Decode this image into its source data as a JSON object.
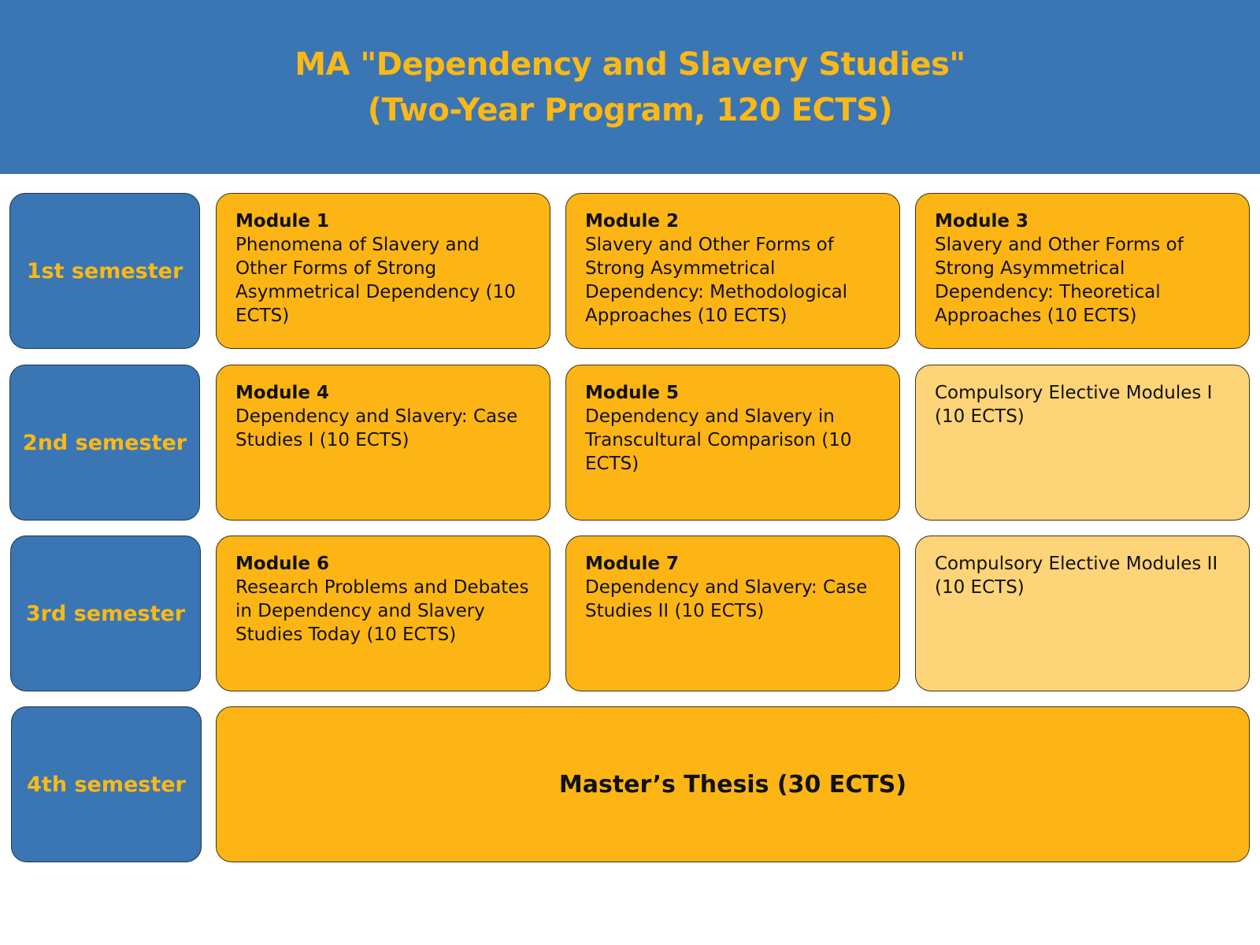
{
  "title": {
    "line1": "MA \"Dependency and Slavery Studies\"",
    "line2": "(Two-Year Program, 120 ECTS)"
  },
  "semesters": [
    "1st semester",
    "2nd semester",
    "3rd semester",
    "4th semester"
  ],
  "modules": [
    {
      "title": "Module 1",
      "text": "Phenomena of Slavery and Other Forms of Strong Asymmetrical Dependency (10 ECTS)"
    },
    {
      "title": "Module 2",
      "text": "Slavery and Other Forms of Strong Asymmetrical Dependency: Methodological Approaches (10 ECTS)"
    },
    {
      "title": "Module 3",
      "text": "Slavery and Other Forms of Strong Asymmetrical Dependency: Theoretical Approaches (10 ECTS)"
    },
    {
      "title": "Module 4",
      "text": "Dependency and Slavery: Case Studies I (10 ECTS)"
    },
    {
      "title": "Module 5",
      "text": "Dependency and Slavery in Transcultural Comparison (10 ECTS)"
    },
    {
      "title": "",
      "text": "Compulsory Elective Modules I (10 ECTS)"
    },
    {
      "title": "Module 6",
      "text": "Research Problems and Debates in Dependency and Slavery Studies Today (10 ECTS)"
    },
    {
      "title": "Module 7",
      "text": "Dependency and Slavery: Case Studies II (10 ECTS)"
    },
    {
      "title": "",
      "text": "Compulsory Elective Modules II (10 ECTS)"
    }
  ],
  "thesis": "Master’s Thesis (30 ECTS)",
  "colors": {
    "blue": "#3A76B3",
    "yellow": "#FDB515",
    "light_yellow": "#FDD477",
    "title_yellow": "#FBB817"
  }
}
